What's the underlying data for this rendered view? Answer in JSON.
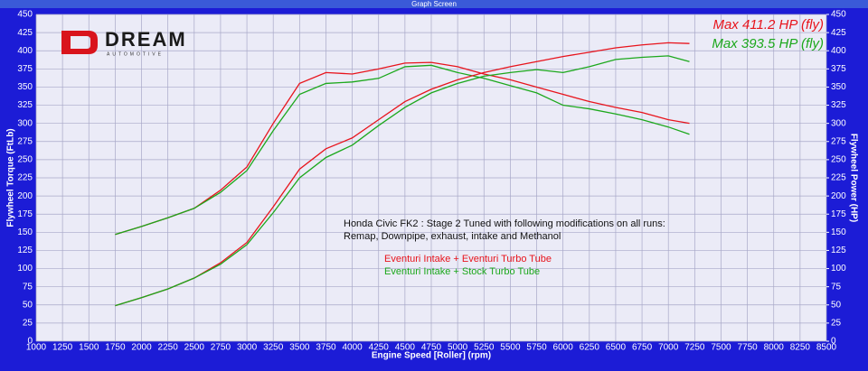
{
  "chart_data": {
    "type": "line",
    "window_title": "Graph Screen",
    "logo": "DREAM",
    "logo_subtitle": "AUTOMOTIVE",
    "x_label": "Engine Speed [Roller] (rpm)",
    "y_label": "Flywheel Torque (FtLb)",
    "y2_label": "Flywheel Power (HP)",
    "annotations": [
      "Honda Civic FK2 : Stage 2 Tuned with following modifications on all runs:",
      "Remap, Downpipe, exhaust, intake and Methanol"
    ],
    "x": [
      1750,
      2000,
      2250,
      2500,
      2750,
      3000,
      3250,
      3500,
      3750,
      4000,
      4250,
      4500,
      4750,
      5000,
      5250,
      5500,
      5750,
      6000,
      6250,
      6500,
      6750,
      7000,
      7200
    ],
    "series": [
      {
        "name": "Eventuri Intake + Eventuri Turbo Tube",
        "color": "#e8141c",
        "values": [
          147,
          158,
          170,
          183,
          208,
          240,
          300,
          355,
          370,
          368,
          375,
          383,
          384,
          378,
          368,
          360,
          350,
          340,
          330,
          322,
          315,
          305,
          300
        ]
      },
      {
        "name": "Eventuri Intake + Stock Turbo Tube",
        "color": "#1ca81c",
        "values": [
          147,
          158,
          170,
          183,
          205,
          235,
          290,
          340,
          355,
          357,
          362,
          378,
          380,
          370,
          362,
          352,
          342,
          325,
          320,
          313,
          305,
          295,
          285
        ]
      },
      {
        "max_label": "Max 411.2 HP (fly)",
        "color": "#e8141c",
        "axis": "y2",
        "values": [
          49,
          60,
          72,
          87,
          108,
          136,
          185,
          237,
          265,
          280,
          305,
          330,
          347,
          360,
          370,
          378,
          385,
          392,
          398,
          404,
          408,
          411,
          410
        ]
      },
      {
        "max_label": "Max 393.5 HP (fly)",
        "color": "#1ca81c",
        "axis": "y2",
        "values": [
          49,
          60,
          72,
          87,
          106,
          133,
          177,
          225,
          253,
          270,
          297,
          322,
          342,
          355,
          365,
          370,
          374,
          370,
          378,
          388,
          391,
          393,
          385
        ]
      }
    ],
    "xlim": [
      1000,
      8500
    ],
    "xticks": [
      1000,
      1250,
      1500,
      1750,
      2000,
      2250,
      2500,
      2750,
      3000,
      3250,
      3500,
      3750,
      4000,
      4250,
      4500,
      4750,
      5000,
      5250,
      5500,
      5750,
      6000,
      6250,
      6500,
      6750,
      7000,
      7250,
      7500,
      7750,
      8000,
      8250,
      8500
    ],
    "ylim": [
      0,
      450
    ],
    "yticks": [
      0,
      25,
      50,
      75,
      100,
      125,
      150,
      175,
      200,
      225,
      250,
      275,
      300,
      325,
      350,
      375,
      400,
      425,
      450
    ],
    "y2lim": [
      0,
      450
    ],
    "y2ticks": [
      0,
      25,
      50,
      75,
      100,
      125,
      150,
      175,
      200,
      225,
      250,
      275,
      300,
      325,
      350,
      375,
      400,
      425,
      450
    ],
    "grid": true
  }
}
